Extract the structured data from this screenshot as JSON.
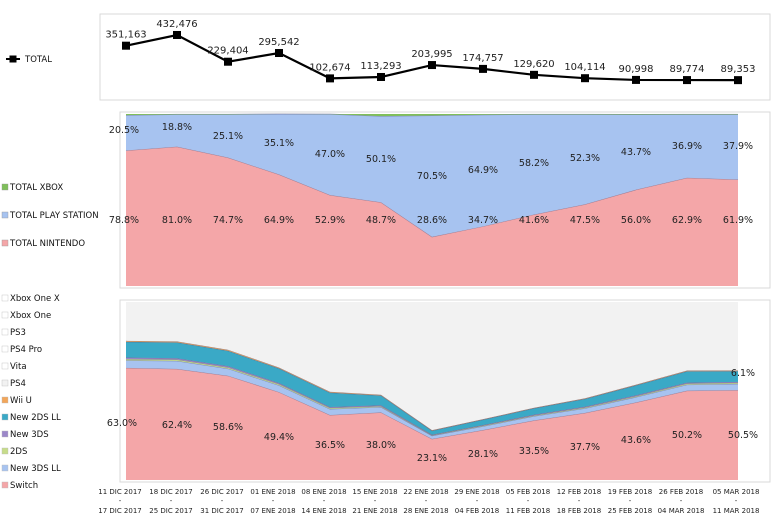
{
  "chart_data": [
    {
      "id": "total",
      "type": "line",
      "legend": [
        {
          "name": "TOTAL",
          "color": "#000000"
        }
      ],
      "x": [
        "11 DIC 2017",
        "18 DIC 2017",
        "26 DIC 2017",
        "01 ENE 2018",
        "08 ENE 2018",
        "15 ENE 2018",
        "22 ENE 2018",
        "29 ENE 2018",
        "05 FEB 2018",
        "12 FEB 2018",
        "19 FEB 2018",
        "26 FEB 2018",
        "05 MAR 2018"
      ],
      "values": [
        351163,
        432476,
        229404,
        295542,
        102674,
        113293,
        203995,
        174757,
        129620,
        104114,
        90998,
        89774,
        89353
      ],
      "labels": [
        "351,163",
        "432,476",
        "229,404",
        "295,542",
        "102,674",
        "113,293",
        "203,995",
        "174,757",
        "129,620",
        "104,114",
        "90,998",
        "89,774",
        "89,353"
      ]
    },
    {
      "id": "platform_share",
      "type": "area",
      "stacked": "percent",
      "series": [
        {
          "name": "TOTAL NINTENDO",
          "color": "#f4a6a8",
          "values": [
            78.8,
            81.0,
            74.7,
            64.9,
            52.9,
            48.7,
            28.6,
            34.7,
            41.6,
            47.5,
            56.0,
            62.9,
            61.9
          ],
          "labels": [
            "78.8%",
            "81.0%",
            "74.7%",
            "64.9%",
            "52.9%",
            "48.7%",
            "28.6%",
            "34.7%",
            "41.6%",
            "47.5%",
            "56.0%",
            "62.9%",
            "61.9%"
          ]
        },
        {
          "name": "TOTAL PLAY STATION",
          "color": "#a7c3f0",
          "values": [
            20.5,
            18.8,
            25.1,
            35.1,
            47.0,
            50.1,
            70.5,
            64.9,
            58.2,
            52.3,
            43.7,
            36.9,
            37.9
          ],
          "labels": [
            "20.5%",
            "18.8%",
            "25.1%",
            "35.1%",
            "47.0%",
            "50.1%",
            "70.5%",
            "64.9%",
            "58.2%",
            "52.3%",
            "43.7%",
            "36.9%",
            "37.9%"
          ]
        },
        {
          "name": "TOTAL XBOX",
          "color": "#7fbf5a",
          "values": [
            0.7,
            0.2,
            0.2,
            0.0,
            0.1,
            1.2,
            0.9,
            0.4,
            0.2,
            0.2,
            0.3,
            0.2,
            0.2
          ]
        }
      ]
    },
    {
      "id": "model_share",
      "type": "area",
      "stacked": "percent",
      "legend_order": [
        "Xbox One X",
        "Xbox One",
        "PS3",
        "PS4 Pro",
        "Vita",
        "PS4",
        "Wii U",
        "New 2DS LL",
        "New 3DS",
        "2DS",
        "New 3DS LL",
        "Switch"
      ],
      "series": [
        {
          "name": "Switch",
          "color": "#f4a6a8",
          "values": [
            63.0,
            62.4,
            58.6,
            49.4,
            36.5,
            38.0,
            23.1,
            28.1,
            33.5,
            37.7,
            43.6,
            50.2,
            50.5
          ],
          "labels": [
            "63.0%",
            "62.4%",
            "58.6%",
            "49.4%",
            "36.5%",
            "38.0%",
            "23.1%",
            "28.1%",
            "33.5%",
            "37.7%",
            "43.6%",
            "50.2%",
            "50.5%"
          ]
        },
        {
          "name": "New 3DS LL",
          "color": "#a7c3f0",
          "values": [
            4.2,
            4.5,
            4.0,
            3.8,
            3.4,
            3.0,
            1.8,
            2.1,
            2.4,
            2.6,
            3.0,
            3.4,
            3.5
          ]
        },
        {
          "name": "2DS",
          "color": "#c7dc8a",
          "values": [
            0.8,
            0.8,
            0.7,
            0.7,
            0.6,
            0.5,
            0.3,
            0.4,
            0.4,
            0.5,
            0.5,
            0.6,
            0.6
          ]
        },
        {
          "name": "New 3DS",
          "color": "#9b87c8",
          "values": [
            0.8,
            0.7,
            0.7,
            0.6,
            0.5,
            0.5,
            0.3,
            0.3,
            0.4,
            0.4,
            0.5,
            0.5,
            0.5
          ]
        },
        {
          "name": "New 2DS LL",
          "color": "#3aa9c6",
          "values": [
            8.8,
            8.9,
            8.6,
            8.2,
            8.1,
            5.5,
            2.2,
            3.0,
            3.6,
            4.4,
            5.6,
            6.4,
            6.1
          ],
          "labels": [
            "",
            "",
            "",
            "",
            "",
            "",
            "",
            "",
            "",
            "",
            "",
            "",
            "6.1%"
          ]
        },
        {
          "name": "Wii U",
          "color": "#f2a65a",
          "values": [
            0.6,
            0.6,
            0.6,
            0.5,
            0.5,
            0.4,
            0.3,
            0.3,
            0.3,
            0.3,
            0.4,
            0.4,
            0.4
          ]
        },
        {
          "name": "PS4",
          "color": "#f2f2f2",
          "values": [
            21.8,
            22.1,
            26.8,
            36.8,
            50.4,
            52.1,
            72.0,
            65.8,
            59.4,
            54.1,
            46.4,
            38.5,
            38.4
          ]
        }
      ]
    }
  ],
  "x_labels_top": [
    "11 DIC 2017",
    "18 DIC 2017",
    "26 DIC 2017",
    "01 ENE 2018",
    "08 ENE 2018",
    "15 ENE 2018",
    "22 ENE 2018",
    "29 ENE 2018",
    "05 FEB 2018",
    "12 FEB 2018",
    "19 FEB 2018",
    "26 FEB 2018",
    "05 MAR 2018"
  ],
  "x_labels_bottom": [
    "17 DIC 2017",
    "25 DIC 2017",
    "31 DIC 2017",
    "07 ENE 2018",
    "14 ENE 2018",
    "21 ENE 2018",
    "28 ENE 2018",
    "04 FEB 2018",
    "11 FEB 2018",
    "18 FEB 2018",
    "25 FEB 2018",
    "04 MAR 2018",
    "11 MAR 2018"
  ],
  "x_separator": "-"
}
